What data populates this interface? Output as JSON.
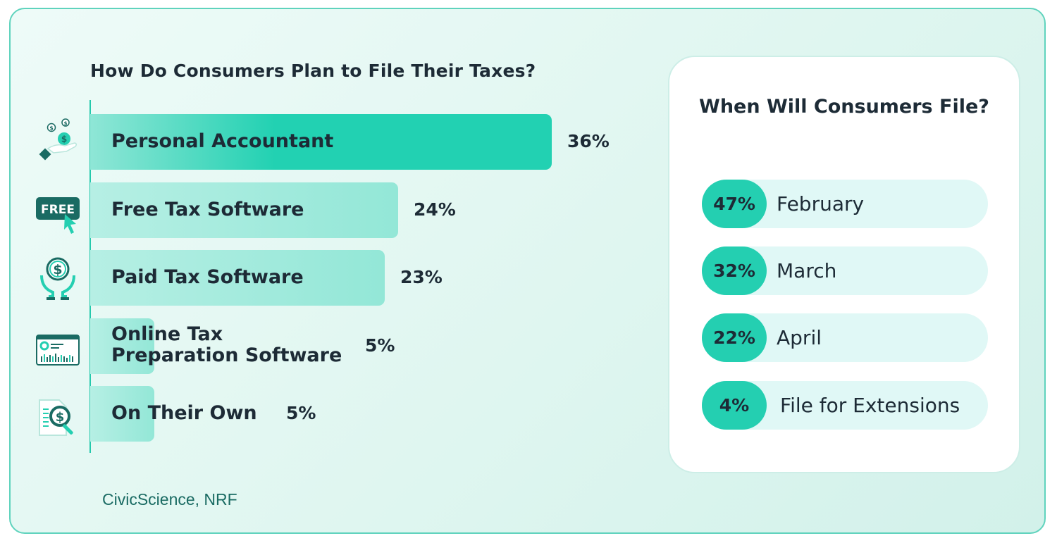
{
  "chart_data": [
    {
      "type": "bar",
      "orientation": "horizontal",
      "title": "How Do Consumers Plan to File Their Taxes?",
      "categories": [
        "Personal Accountant",
        "Free Tax Software",
        "Paid Tax Software",
        "Online Tax Preparation Software",
        "On Their Own"
      ],
      "values": [
        36,
        24,
        23,
        5,
        5
      ],
      "value_labels": [
        "36%",
        "24%",
        "23%",
        "5%",
        "5%"
      ],
      "unit": "%",
      "icons": [
        "hand-coins-icon",
        "free-tag-cursor-icon",
        "dollar-hands-icon",
        "dashboard-chart-icon",
        "document-magnifier-dollar-icon"
      ],
      "grid": false
    },
    {
      "type": "table",
      "title": "When Will Consumers File?",
      "categories": [
        "February",
        "March",
        "April",
        "File for Extensions"
      ],
      "values": [
        47,
        32,
        22,
        4
      ],
      "value_labels": [
        "47%",
        "32%",
        "22%",
        "4%"
      ],
      "unit": "%"
    }
  ],
  "source": "CivicScience, NRF",
  "colors": {
    "accent": "#24cfb1",
    "bar_strong": "#22d1b2",
    "bar_light": "#93e7d7",
    "text": "#1d2b36",
    "source_text": "#1a6b63",
    "pill_bg": "#e0f8f6",
    "border": "#5fd3bd"
  }
}
